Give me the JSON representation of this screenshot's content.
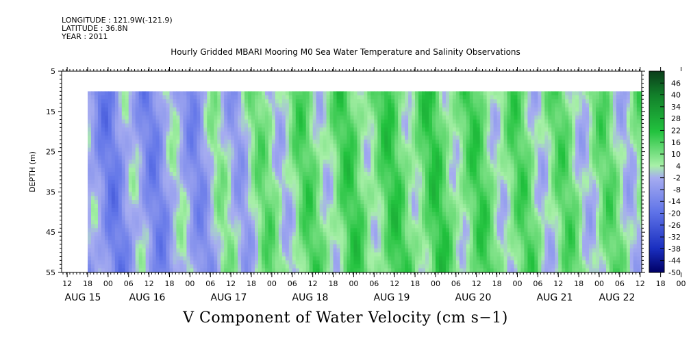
{
  "header": {
    "longitude_line": "LONGITUDE : 121.9W(-121.9)",
    "latitude_line": "LATITUDE : 36.8N",
    "year_line": "YEAR : 2011"
  },
  "chart_data": {
    "type": "heatmap",
    "title": "Hourly Gridded MBARI Mooring M0 Sea Water Temperature and Salinity Observations",
    "xlabel": "V Component of Water Velocity (cm s−1)",
    "ylabel": "DEPTH (m)",
    "y_ticks": [
      "5",
      "15",
      "25",
      "35",
      "45",
      "55"
    ],
    "ylim": [
      55,
      5
    ],
    "data_depth_range": [
      10,
      55
    ],
    "hour_ticks": [
      "12",
      "18",
      "00",
      "06",
      "12",
      "18",
      "00",
      "06",
      "12",
      "18",
      "00",
      "06",
      "12",
      "18",
      "00",
      "06",
      "12",
      "18",
      "00",
      "06",
      "12",
      "18",
      "00",
      "06",
      "12",
      "18",
      "00",
      "06",
      "12",
      "18",
      "00",
      "06"
    ],
    "day_labels": [
      "AUG 15",
      "AUG 16",
      "AUG 17",
      "AUG 18",
      "AUG 19",
      "AUG 20",
      "AUG 21",
      "AUG 22"
    ],
    "time_range": [
      "2011-08-15T18:00",
      "2011-08-22T22:00"
    ],
    "colorbar_ticks": [
      "46",
      "40",
      "34",
      "28",
      "22",
      "16",
      "10",
      "4",
      "-2",
      "-8",
      "-14",
      "-20",
      "-26",
      "-32",
      "-38",
      "-44",
      "-50"
    ],
    "colorbar_range": [
      -50,
      52
    ],
    "colors": {
      "strong_positive": "#0a3d1a",
      "mid_positive": "#22c23e",
      "weak_positive": "#a8f0a8",
      "weak_negative": "#a6acf0",
      "mid_negative": "#5f73e8",
      "strong_negative": "#000066"
    },
    "v_velocity_by_day": [
      {
        "day": "AUG 15",
        "depth_mean_v_cm_s": -12
      },
      {
        "day": "AUG 16",
        "depth_mean_v_cm_s": -10
      },
      {
        "day": "AUG 17",
        "depth_mean_v_cm_s": -6
      },
      {
        "day": "AUG 18",
        "depth_mean_v_cm_s": 5
      },
      {
        "day": "AUG 19",
        "depth_mean_v_cm_s": 10
      },
      {
        "day": "AUG 20",
        "depth_mean_v_cm_s": 11
      },
      {
        "day": "AUG 21",
        "depth_mean_v_cm_s": 7
      },
      {
        "day": "AUG 22",
        "depth_mean_v_cm_s": 5
      }
    ],
    "grid": false,
    "colorbar_placement": "right"
  }
}
